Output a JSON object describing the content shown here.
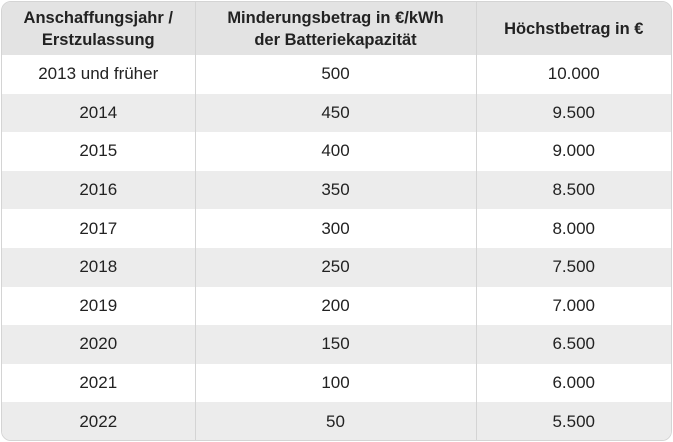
{
  "table": {
    "headers": [
      [
        "Anschaffungsjahr /",
        "Erstzulassung"
      ],
      [
        "Minderungsbetrag in €/kWh",
        "der Batteriekapazität"
      ],
      [
        "Höchstbetrag in €"
      ]
    ],
    "rows": [
      [
        "2013 und früher",
        "500",
        "10.000"
      ],
      [
        "2014",
        "450",
        "9.500"
      ],
      [
        "2015",
        "400",
        "9.000"
      ],
      [
        "2016",
        "350",
        "8.500"
      ],
      [
        "2017",
        "300",
        "8.000"
      ],
      [
        "2018",
        "250",
        "7.500"
      ],
      [
        "2019",
        "200",
        "7.000"
      ],
      [
        "2020",
        "150",
        "6.500"
      ],
      [
        "2021",
        "100",
        "6.000"
      ],
      [
        "2022",
        "50",
        "5.500"
      ]
    ]
  },
  "colors": {
    "header_bg": "#e3e3e3",
    "stripe_bg": "#ececec",
    "border": "#d4d4d4"
  }
}
